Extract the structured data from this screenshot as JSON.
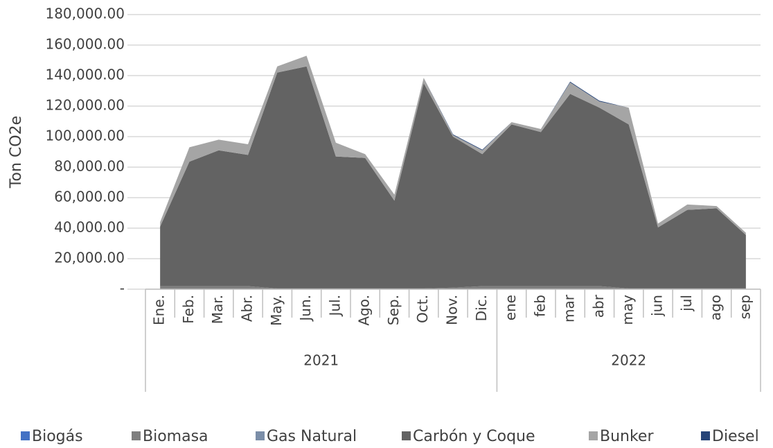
{
  "chart_data": {
    "type": "stacked_area",
    "y_label": "Ton CO2e",
    "groups": [
      {
        "label": "2021",
        "categories": [
          "Ene.",
          "Feb.",
          "Mar.",
          "Abr.",
          "May.",
          "Jun.",
          "Jul.",
          "Ago.",
          "Sep.",
          "Oct.",
          "Nov.",
          "Dic."
        ]
      },
      {
        "label": "2022",
        "categories": [
          "ene",
          "feb",
          "mar",
          "abr",
          "may",
          "jun",
          "jul",
          "ago",
          "sep"
        ]
      }
    ],
    "series": [
      {
        "name": "Biogás",
        "color": "#4472c4",
        "values": [
          0,
          0,
          0,
          0,
          0,
          0,
          0,
          0,
          0,
          0,
          0,
          0,
          0,
          0,
          0,
          0,
          0,
          0,
          0,
          0,
          0
        ]
      },
      {
        "name": "Biomasa",
        "color": "#7f7f7f",
        "values": [
          2000,
          2000,
          2000,
          2000,
          500,
          500,
          500,
          500,
          500,
          500,
          1000,
          2000,
          2000,
          2000,
          2000,
          2000,
          500,
          500,
          500,
          500,
          500
        ]
      },
      {
        "name": "Gas Natural",
        "color": "#7b8ea8",
        "values": [
          0,
          0,
          0,
          0,
          0,
          0,
          0,
          0,
          0,
          0,
          0,
          0,
          0,
          0,
          0,
          0,
          0,
          0,
          0,
          0,
          0
        ]
      },
      {
        "name": "Carbón y Coque",
        "color": "#636363",
        "values": [
          39000,
          81600,
          89000,
          86000,
          141500,
          145500,
          86500,
          85500,
          57500,
          134500,
          99000,
          86500,
          106000,
          101000,
          126000,
          117000,
          107500,
          40000,
          51500,
          52500,
          35000
        ]
      },
      {
        "name": "Bunker",
        "color": "#a5a5a5",
        "values": [
          3000,
          9400,
          7000,
          7000,
          4000,
          7000,
          9000,
          2500,
          4000,
          3500,
          1000,
          2500,
          1500,
          2000,
          7500,
          4000,
          11000,
          2500,
          3500,
          1500,
          1500
        ]
      },
      {
        "name": "Diesel",
        "color": "#264478",
        "values": [
          0,
          0,
          0,
          0,
          0,
          0,
          0,
          0,
          0,
          0,
          500,
          500,
          0,
          0,
          500,
          500,
          0,
          0,
          0,
          0,
          0
        ]
      }
    ],
    "ylim": [
      0,
      180000
    ],
    "yticks": [
      {
        "value": 0,
        "label": "-"
      },
      {
        "value": 20000,
        "label": "20,000.00"
      },
      {
        "value": 40000,
        "label": "40,000.00"
      },
      {
        "value": 60000,
        "label": "60,000.00"
      },
      {
        "value": 80000,
        "label": "80,000.00"
      },
      {
        "value": 100000,
        "label": "100,000.00"
      },
      {
        "value": 120000,
        "label": "120,000.00"
      },
      {
        "value": 140000,
        "label": "140,000.00"
      },
      {
        "value": 160000,
        "label": "160,000.00"
      },
      {
        "value": 180000,
        "label": "180,000.00"
      }
    ],
    "grid": true,
    "legend": "bottom"
  }
}
